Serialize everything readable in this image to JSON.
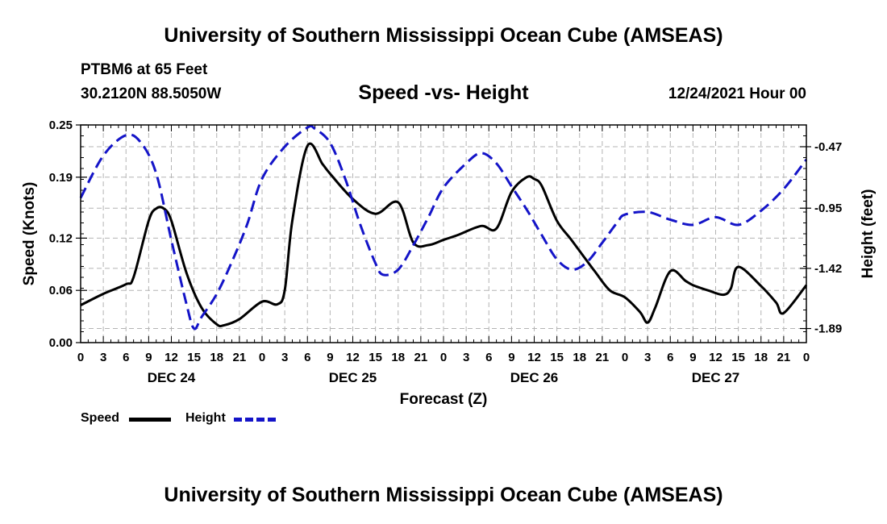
{
  "header": {
    "title": "University of Southern Mississippi Ocean Cube (AMSEAS)",
    "station": "PTBM6 at 65 Feet",
    "coords": "30.2120N  88.5050W",
    "chart_title": "Speed -vs- Height",
    "datetime": "12/24/2021 Hour 00"
  },
  "footer": {
    "title": "University of Southern Mississippi Ocean Cube (AMSEAS)"
  },
  "legend": {
    "speed_label": "Speed",
    "height_label": "Height"
  },
  "colors": {
    "speed": "#000000",
    "height": "#1414c8",
    "grid": "#b4b4b4"
  },
  "chart_data": {
    "type": "line",
    "xlabel": "Forecast (Z)",
    "ylabel_left": "Speed (Knots)",
    "ylabel_right": "Height (feet)",
    "xlim": [
      0,
      96
    ],
    "ylim_left": [
      0,
      0.25
    ],
    "ylim_right": [
      -2.0,
      -0.3
    ],
    "x_ticks": [
      0,
      3,
      6,
      9,
      12,
      15,
      18,
      21,
      24,
      27,
      30,
      33,
      36,
      39,
      42,
      45,
      48,
      51,
      54,
      57,
      60,
      63,
      66,
      69,
      72,
      75,
      78,
      81,
      84,
      87,
      90,
      93,
      96
    ],
    "x_tick_labels": [
      "0",
      "3",
      "6",
      "9",
      "12",
      "15",
      "18",
      "21",
      "0",
      "3",
      "6",
      "9",
      "12",
      "15",
      "18",
      "21",
      "0",
      "3",
      "6",
      "9",
      "12",
      "15",
      "18",
      "21",
      "0",
      "3",
      "6",
      "9",
      "12",
      "15",
      "18",
      "21",
      "0"
    ],
    "date_labels": [
      {
        "x": 12,
        "label": "DEC 24"
      },
      {
        "x": 36,
        "label": "DEC 25"
      },
      {
        "x": 60,
        "label": "DEC 26"
      },
      {
        "x": 84,
        "label": "DEC 27"
      }
    ],
    "y_left_ticks": [
      0,
      0.06,
      0.12,
      0.19,
      0.25
    ],
    "y_left_tick_labels": [
      "0.00",
      "0.06",
      "0.12",
      "0.19",
      "0.25"
    ],
    "y_right_ticks": [
      -1.89,
      -1.42,
      -0.95,
      -0.47
    ],
    "y_right_tick_labels": [
      "-1.89",
      "-1.42",
      "-0.95",
      "-0.47"
    ],
    "series": [
      {
        "name": "Speed",
        "axis": "left",
        "style": "solid",
        "x": [
          0,
          3,
          6,
          7,
          9,
          10,
          11,
          12,
          14,
          16,
          18,
          19,
          21,
          24,
          26,
          27,
          28,
          30,
          32,
          33,
          36,
          39,
          42,
          44,
          46,
          48,
          50,
          53,
          55,
          57,
          59,
          60,
          61,
          63,
          65,
          68,
          70,
          72,
          74,
          75,
          76,
          78,
          80,
          81,
          83,
          85,
          86,
          87,
          90,
          92,
          93,
          96
        ],
        "values": [
          0.043,
          0.056,
          0.067,
          0.075,
          0.14,
          0.154,
          0.154,
          0.14,
          0.08,
          0.04,
          0.021,
          0.02,
          0.027,
          0.047,
          0.044,
          0.06,
          0.14,
          0.226,
          0.205,
          0.194,
          0.165,
          0.148,
          0.161,
          0.115,
          0.112,
          0.118,
          0.124,
          0.134,
          0.131,
          0.173,
          0.19,
          0.188,
          0.18,
          0.14,
          0.117,
          0.082,
          0.06,
          0.052,
          0.035,
          0.023,
          0.04,
          0.082,
          0.071,
          0.066,
          0.06,
          0.055,
          0.062,
          0.087,
          0.065,
          0.046,
          0.034,
          0.066
        ]
      },
      {
        "name": "Height",
        "axis": "right",
        "style": "dashed",
        "x": [
          0,
          3,
          6,
          8,
          10,
          12,
          14,
          15,
          16,
          18,
          20,
          22,
          24,
          27,
          30,
          31,
          33,
          35,
          37,
          39,
          40,
          42,
          44,
          46,
          48,
          51,
          53,
          55,
          57,
          59,
          61,
          63,
          65,
          67,
          69,
          71,
          72,
          75,
          78,
          81,
          84,
          87,
          90,
          93,
          96
        ],
        "values": [
          -0.87,
          -0.54,
          -0.38,
          -0.44,
          -0.68,
          -1.2,
          -1.7,
          -1.89,
          -1.8,
          -1.62,
          -1.37,
          -1.08,
          -0.72,
          -0.47,
          -0.32,
          -0.33,
          -0.44,
          -0.72,
          -1.08,
          -1.38,
          -1.47,
          -1.43,
          -1.24,
          -1.02,
          -0.79,
          -0.6,
          -0.52,
          -0.6,
          -0.78,
          -0.96,
          -1.16,
          -1.35,
          -1.43,
          -1.37,
          -1.22,
          -1.06,
          -1.0,
          -0.98,
          -1.04,
          -1.08,
          -1.02,
          -1.08,
          -0.97,
          -0.8,
          -0.57
        ]
      }
    ]
  }
}
